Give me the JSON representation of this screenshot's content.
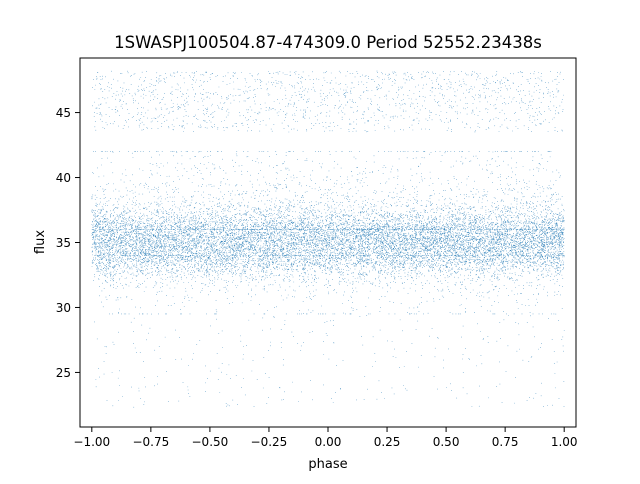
{
  "chart_data": {
    "type": "scatter",
    "title": "1SWASPJ100504.87-474309.0 Period 52552.23438s",
    "xlabel": "phase",
    "ylabel": "flux",
    "xlim": [
      -1.05,
      1.05
    ],
    "ylim": [
      20.8,
      49.2
    ],
    "x_ticks": [
      -1.0,
      -0.75,
      -0.5,
      -0.25,
      0.0,
      0.25,
      0.5,
      0.75,
      1.0
    ],
    "x_tick_labels": [
      "−1.00",
      "−0.75",
      "−0.50",
      "−0.25",
      "0.00",
      "0.25",
      "0.50",
      "0.75",
      "1.00"
    ],
    "y_ticks": [
      25,
      30,
      35,
      40,
      45
    ],
    "y_tick_labels": [
      "25",
      "30",
      "35",
      "40",
      "45"
    ],
    "grid": false,
    "legend": "none",
    "series": [
      {
        "color": "#1f77b4",
        "marker_size": 0.6,
        "x_range": [
          -1.0,
          1.0
        ],
        "core_center": 35.0,
        "core_spread": 1.3,
        "core_min": 29.5,
        "core_max": 41.0,
        "high_band": [
          43.5,
          48.2
        ],
        "low_band": [
          22.3,
          30.0
        ],
        "x": [
          -1.0,
          -0.9,
          -0.8,
          -0.7,
          -0.6,
          -0.5,
          -0.4,
          -0.3,
          -0.2,
          -0.1,
          0.0,
          0.1,
          0.2,
          0.3,
          0.4,
          0.5,
          0.6,
          0.7,
          0.8,
          0.9,
          1.0
        ],
        "y": [
          35.0,
          35.0,
          35.0,
          35.0,
          35.0,
          35.0,
          35.0,
          35.0,
          35.0,
          35.0,
          35.0,
          35.0,
          35.0,
          35.0,
          35.0,
          35.0,
          35.0,
          35.0,
          35.0,
          35.0,
          35.0
        ]
      }
    ]
  }
}
